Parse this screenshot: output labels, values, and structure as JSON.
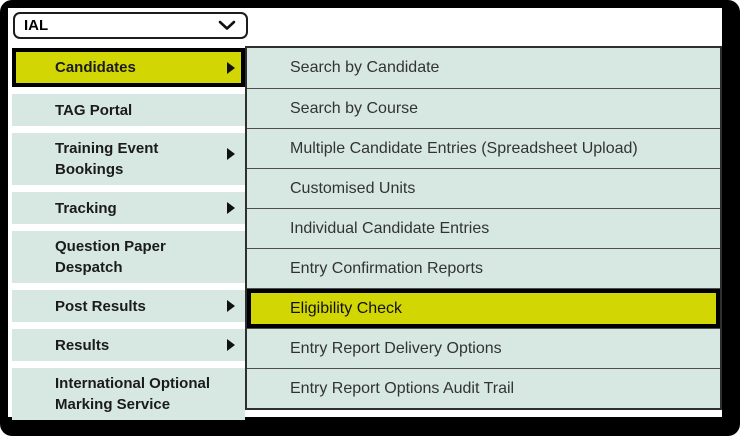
{
  "dropdown": {
    "value": "IAL",
    "chevron_icon": "chevron-down"
  },
  "sidebar": {
    "items": [
      {
        "label": "Candidates",
        "has_submenu": true,
        "highlighted": true
      },
      {
        "label": "TAG Portal",
        "has_submenu": false
      },
      {
        "label": "Training Event Bookings",
        "has_submenu": true
      },
      {
        "label": "Tracking",
        "has_submenu": true
      },
      {
        "label": "Question Paper Despatch",
        "has_submenu": false
      },
      {
        "label": "Post Results",
        "has_submenu": true
      },
      {
        "label": "Results",
        "has_submenu": true
      },
      {
        "label": "International Optional Marking Service",
        "has_submenu": false
      }
    ],
    "submenu_arrow_icon": "triangle-right"
  },
  "submenu": {
    "items": [
      {
        "label": "Search by Candidate"
      },
      {
        "label": "Search by Course"
      },
      {
        "label": "Multiple Candidate Entries (Spreadsheet Upload)"
      },
      {
        "label": "Customised Units"
      },
      {
        "label": "Individual Candidate Entries"
      },
      {
        "label": "Entry Confirmation Reports"
      },
      {
        "label": "Eligibility Check",
        "highlighted": true
      },
      {
        "label": "Entry Report Delivery Options"
      },
      {
        "label": "Entry Report Options Audit Trail"
      }
    ]
  },
  "colors": {
    "frame_bg": "#000000",
    "content_bg": "#ffffff",
    "row_bg": "#d7e8e2",
    "highlight_bg": "#d2d602",
    "highlight_border": "#000000",
    "sidebar_text": "#1b1b1b",
    "submenu_text": "#333333",
    "panel_border": "#2f2f2f",
    "separator": "#4f4f4f"
  }
}
